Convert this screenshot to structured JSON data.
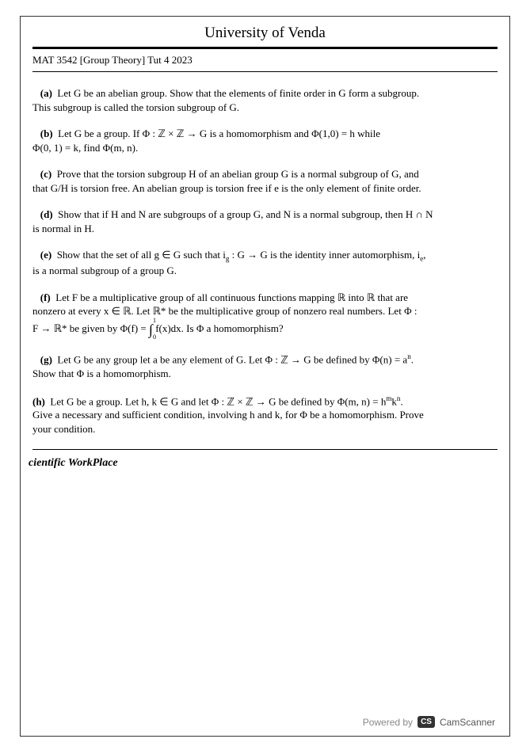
{
  "header": {
    "university": "University of Venda",
    "course": "MAT 3542 [Group Theory] Tut 4 2023"
  },
  "problems": {
    "a": {
      "label": "(a)",
      "text1": "Let G be an abelian group. Show that the elements of finite order in G form a subgroup.",
      "text2": "This subgroup is called the torsion subgroup of G."
    },
    "b": {
      "label": "(b)",
      "text1": "Let G be a group. If Φ : ℤ × ℤ → G is a homomorphism and Φ(1,0) = h while",
      "text2": "Φ(0, 1) = k, find Φ(m, n)."
    },
    "c": {
      "label": "(c)",
      "text1": "Prove that the torsion subgroup H of an abelian group G is a normal subgroup of G, and",
      "text2": "that G/H is torsion free. An abelian group is torsion free if e is the only element of finite order."
    },
    "d": {
      "label": "(d)",
      "text1": "Show that if H and N are subgroups of a group G, and N is a normal subgroup, then H ∩ N",
      "text2": "is normal in H."
    },
    "e": {
      "label": "(e)",
      "text1_pre": "Show that the set of all g ∈ G such that i",
      "text1_sub": "g",
      "text1_mid": " : G → G is the identity inner automorphism, i",
      "text1_sub2": "e",
      "text1_post": ",",
      "text2": "is a normal subgroup of a group G."
    },
    "f": {
      "label": "(f)",
      "text1": "Let F be a multicative group of all continuous functions mapping ℝ into ℝ that are",
      "text1_full": "Let F be a multiplicative group of all continuous functions mapping ℝ into ℝ that are",
      "text2": "nonzero at every x ∈ ℝ. Let ℝ* be the multiplicative group of nonzero real numbers. Let Φ :",
      "text3_pre": "F → ℝ* be given by Φ(f) = ",
      "int_top": "1",
      "int_bot": "0",
      "text3_post": "f(x)dx. Is Φ a homomorphism?"
    },
    "g": {
      "label": "(g)",
      "text1_pre": "Let G be any group let a be any element of G. Let Φ : ℤ → G be defined by Φ(n) = a",
      "text1_sup": "n",
      "text1_post": ".",
      "text2": "Show that Φ is a homomorphism."
    },
    "h": {
      "label": "(h)",
      "text1_pre": "Let G be a group. Let h, k ∈ G and let Φ : ℤ × ℤ → G be defined by Φ(m, n) = h",
      "text1_sup1": "m",
      "text1_mid": "k",
      "text1_sup2": "n",
      "text1_post": ".",
      "text2": "Give a necessary and sufficient condition, involving h and k, for Φ be a homomorphism. Prove",
      "text3": "your condition."
    }
  },
  "footer": {
    "workplace": "cientific WorkPlace",
    "powered": "Powered by",
    "badge": "CS",
    "brand": "CamScanner"
  },
  "styling": {
    "page_bg": "#ffffff",
    "text_color": "#000000",
    "border_color": "#333333",
    "footer_color": "#888888",
    "badge_bg": "#333333",
    "badge_fg": "#ffffff",
    "body_fontsize": 13,
    "title_fontsize": 19
  }
}
